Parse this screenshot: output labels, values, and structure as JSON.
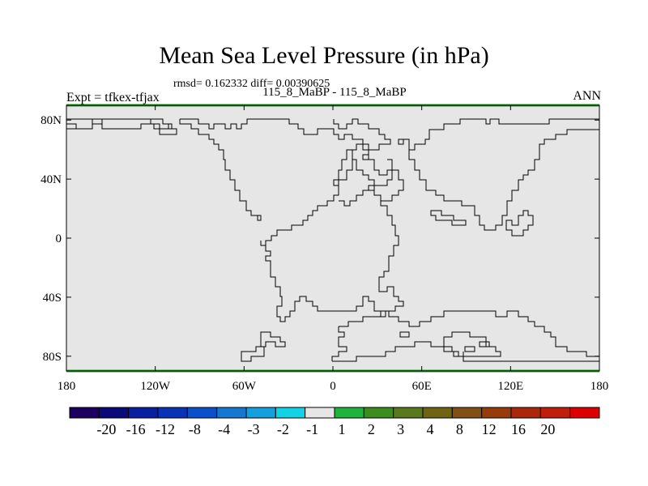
{
  "header": {
    "title": "Mean Sea Level Pressure (in hPa)",
    "stats": "rmsd= 0.162332 diff= 0.00390625",
    "runs": "115_8_MaBP - 115_8_MaBP",
    "left_label": "Expt = tfkex-tfjax",
    "right_label": "ANN"
  },
  "map": {
    "x_ticks": [
      "180",
      "120W",
      "60W",
      "0",
      "60E",
      "120E",
      "180"
    ],
    "y_ticks": [
      "80N",
      "40N",
      "0",
      "40S",
      "80S"
    ],
    "fill_color": "#e6e6e6",
    "border_color": "#2aa02a"
  },
  "colorbar": {
    "colors": [
      "#1c0060",
      "#0a0a78",
      "#0a1ea0",
      "#0a32b4",
      "#0a50c8",
      "#1478d2",
      "#14a0dc",
      "#14d2e6",
      "#e6e6e6",
      "#1eb43c",
      "#3c8c1e",
      "#5a781e",
      "#6e6414",
      "#825014",
      "#963c0a",
      "#aa280a",
      "#be1e0a",
      "#dc0000"
    ],
    "labels": [
      "-20",
      "-16",
      "-12",
      "-8",
      "-4",
      "-3",
      "-2",
      "-1",
      "1",
      "2",
      "3",
      "4",
      "8",
      "12",
      "16",
      "20"
    ]
  }
}
